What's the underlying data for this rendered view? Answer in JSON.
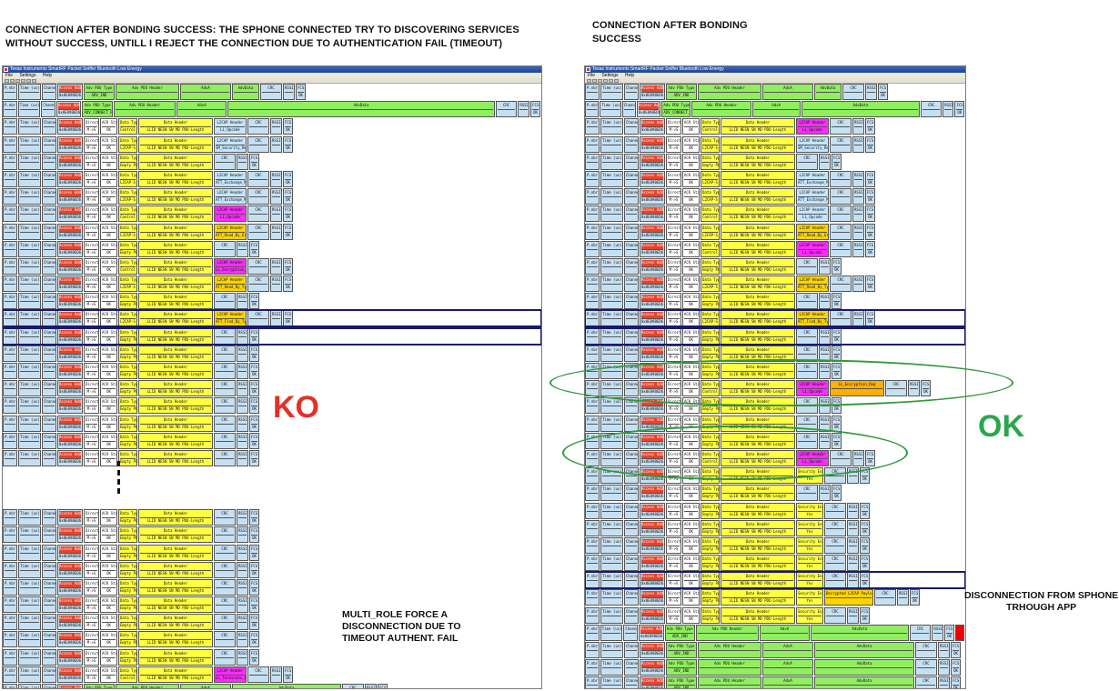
{
  "headlines": {
    "left": [
      "CONNECTION AFTER BONDING SUCCESS: THE SPHONE CONNECTED TRY TO DISCOVERING SERVICES",
      "WITHOUT SUCCESS, UNTILL I REJECT THE CONNECTION DUE TO AUTHENTICATION FAIL (TIMEOUT)"
    ],
    "right": [
      "CONNECTION AFTER BONDING",
      "SUCCESS"
    ]
  },
  "app": {
    "title": "Texas Instruments SmartRF Packet Sniffer Bluetooth Low Energy",
    "menu": [
      "File",
      "Settings",
      "Help"
    ]
  },
  "labels": {
    "ko": "KO",
    "ok": "OK",
    "multi_role_note": [
      "MULTI_ROLE FORCE A",
      "DISCONNECTION DUE TO",
      "TIMEOUT AUTHENT. FAIL"
    ],
    "disconnect_note": [
      "DISCONNECTION FROM SPHONE",
      "TRHOUGH APP"
    ]
  },
  "columns": {
    "pidx": "P.nbr.",
    "time": "Time (us)",
    "channel": "Channel",
    "access_address": "Access Address",
    "direction": "Direction",
    "ack_status": "ACK Status",
    "data_type": "Data Type",
    "data_header": "Data Header",
    "crc": "CRC",
    "rssi": "RSSI (dBm)",
    "fcs": "FCS",
    "adv_pdu_type": "Adv PDU Type",
    "adv_pdu_header": "Adv PDU Header",
    "adva": "AdvA",
    "advdata": "AdvData",
    "l2cap_header": "L2CAP Header",
    "security_enabled": "Security Enabled",
    "decrypted_l2cap": "Decrypted L2CAP Payload"
  },
  "cells": {
    "data_header_fields": "LLID NESN SN MD PDU-Length",
    "empty_pdu": "Empty PDU",
    "control": "Control",
    "l2cap_s": "L2CAP-S",
    "l2cap_c": "L2CAP-C",
    "direction_val": "M->S",
    "ack_val": "OK",
    "fcs_val": "OK",
    "aa_val": "0x8E89BED6",
    "adv_ind": "ADV_IND",
    "connect_req": "ADV_CONNECT_REQ",
    "adv_scan": "ADV_SCAN_IND",
    "yes": "Yes",
    "ll_opcode": "LL_Opcode",
    "smp_security_req": "SM_Security_Req",
    "att_exchange_mtu": "ATT_Exchange_MTU_Req",
    "att_read_by_group": "ATT_Read_By_Group_Type_Req",
    "att_read_by_type": "ATT_Read_By_Type_Req",
    "att_find_by_type": "ATT_Find_By_Type_Value_Req",
    "ll_encryption_req": "LL_Encryption_Req",
    "ll_terminate": "LL_Terminate_Ind"
  }
}
